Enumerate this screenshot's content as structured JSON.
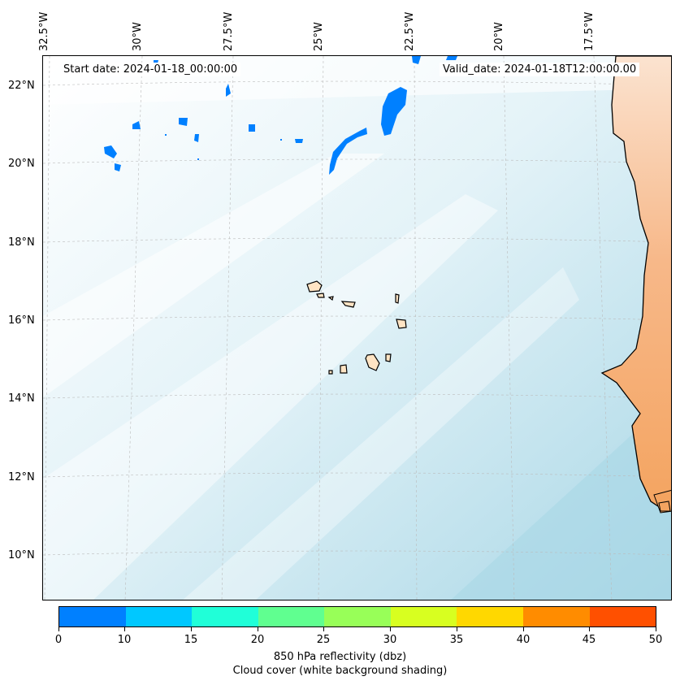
{
  "header": {
    "start_date": "Start date: 2024-01-18_00:00:00",
    "valid_date": "Valid_date: 2024-01-18T12:00:00.00"
  },
  "lon_labels": [
    "32.5°W",
    "30°W",
    "27.5°W",
    "25°W",
    "22.5°W",
    "20°W",
    "17.5°W"
  ],
  "lat_labels": [
    "22°N",
    "20°N",
    "18°N",
    "16°N",
    "14°N",
    "12°N",
    "10°N"
  ],
  "colorbar": {
    "colors": [
      "#0080ff",
      "#00c8ff",
      "#20ffd8",
      "#60ff90",
      "#98ff58",
      "#d8ff20",
      "#ffd800",
      "#ff8c00",
      "#ff5000"
    ],
    "ticks": [
      "0",
      "10",
      "15",
      "20",
      "25",
      "30",
      "35",
      "40",
      "45",
      "50"
    ],
    "label_line1": "850 hPa reflectivity (dbz)",
    "label_line2": "Cloud cover (white background shading)"
  },
  "colors": {
    "ocean_cloud": "#add8e6",
    "land": "#f4a460",
    "islands": "#ffe4c4",
    "reflectivity_low": "#0080ff"
  }
}
